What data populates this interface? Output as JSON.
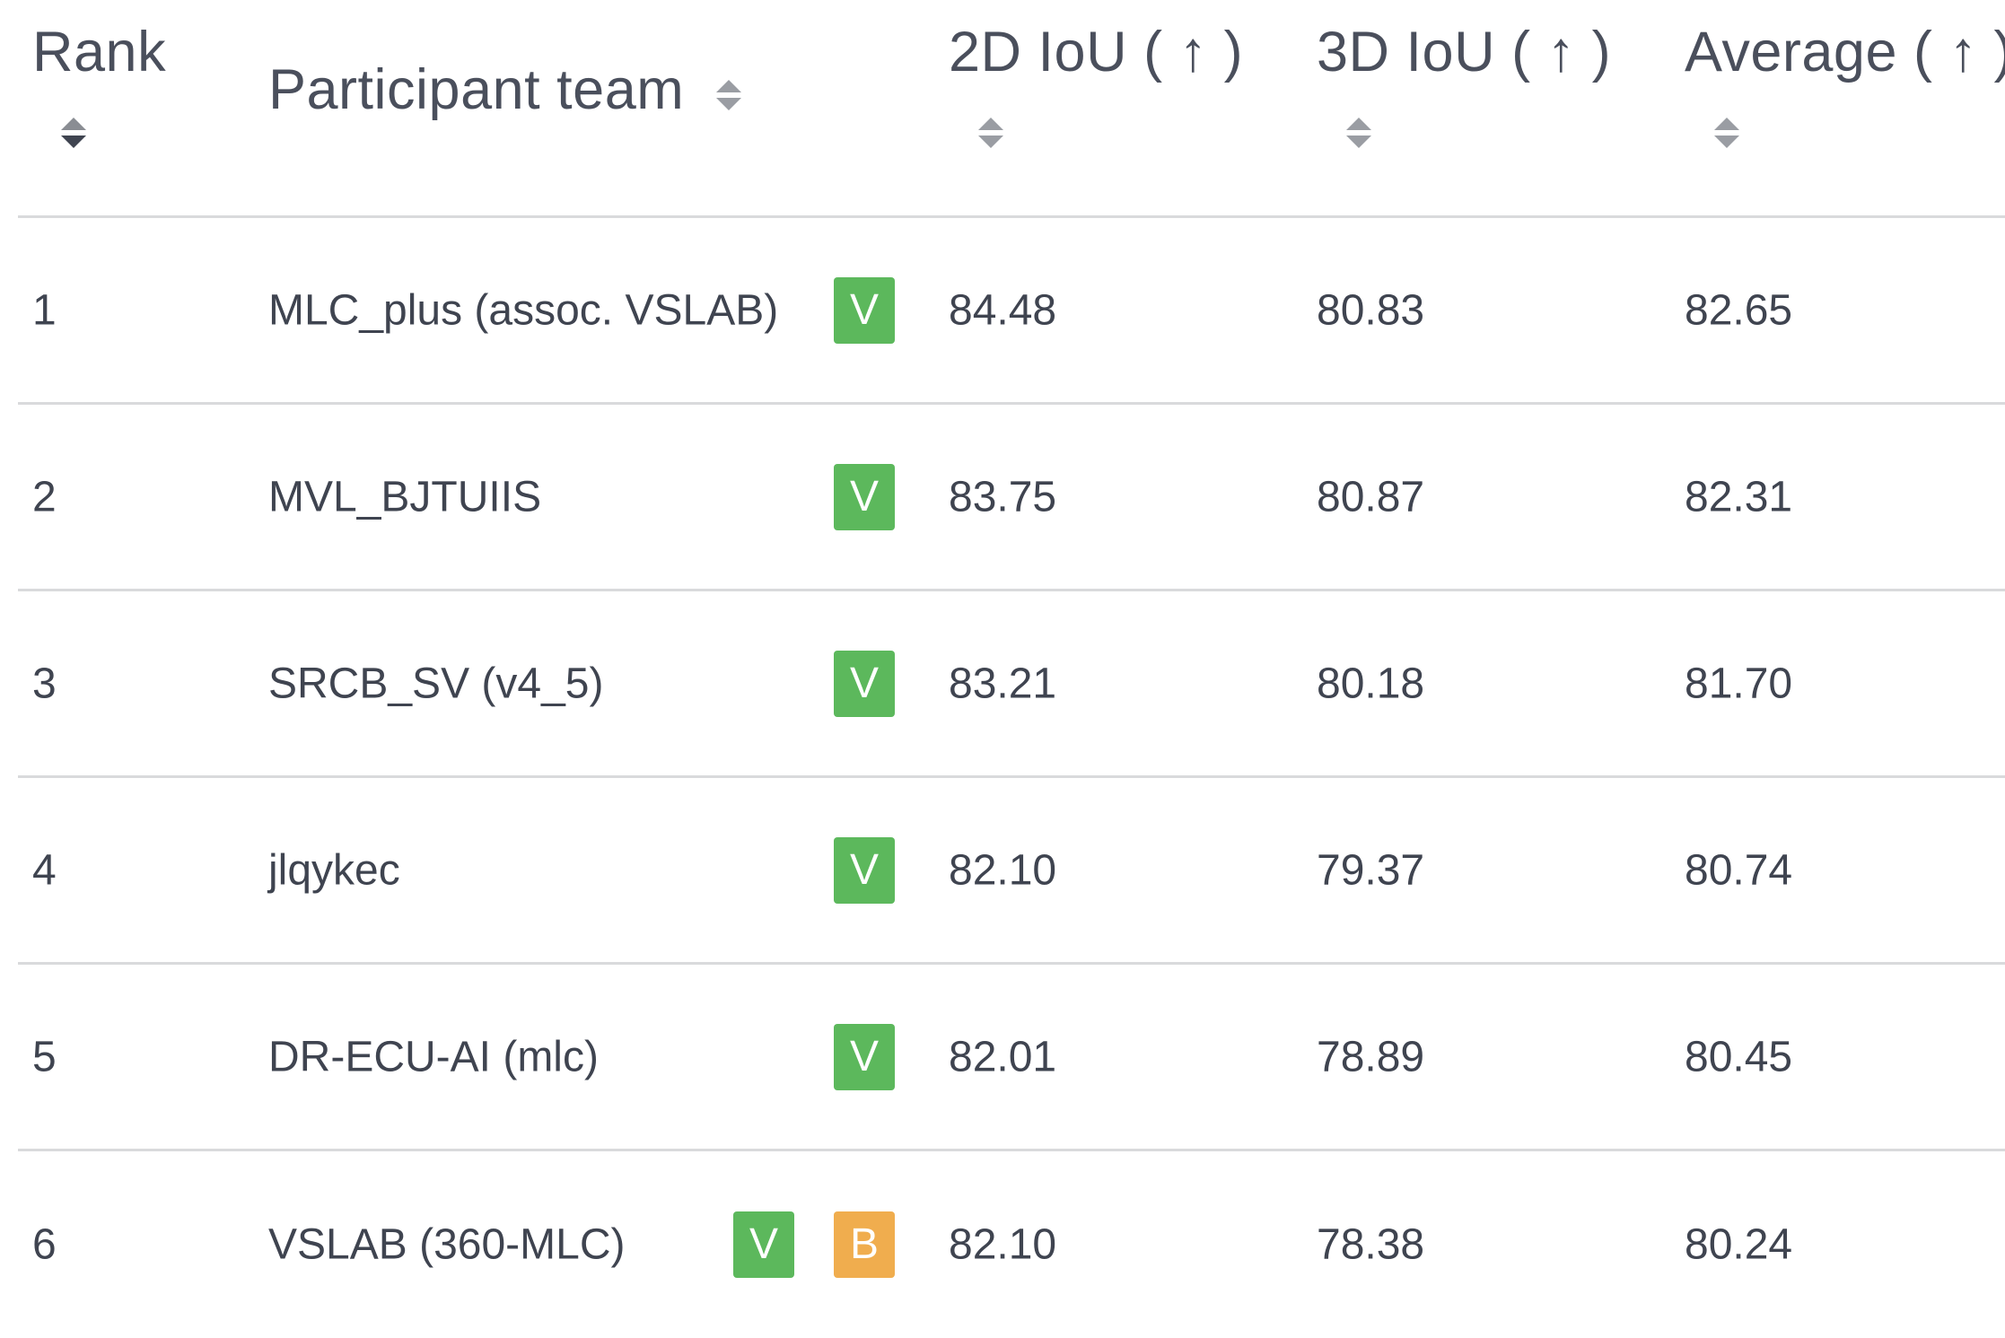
{
  "header": {
    "rank": "Rank",
    "team": "Participant team",
    "iou2d": "2D IoU ( ↑ )",
    "iou3d": "3D IoU ( ↑ )",
    "average": "Average ( ↑ )"
  },
  "colors": {
    "verified_badge": "#5cb85c",
    "baseline_badge": "#f0ad4e",
    "divider": "#d9dadc",
    "text": "#3f4450"
  },
  "rows": [
    {
      "rank": "1",
      "team": "MLC_plus (assoc. VSLAB)",
      "badges": [
        "V"
      ],
      "iou2d": "84.48",
      "iou3d": "80.83",
      "average": "82.65"
    },
    {
      "rank": "2",
      "team": "MVL_BJTUIIS",
      "badges": [
        "V"
      ],
      "iou2d": "83.75",
      "iou3d": "80.87",
      "average": "82.31"
    },
    {
      "rank": "3",
      "team": "SRCB_SV (v4_5)",
      "badges": [
        "V"
      ],
      "iou2d": "83.21",
      "iou3d": "80.18",
      "average": "81.70"
    },
    {
      "rank": "4",
      "team": "jlqykec",
      "badges": [
        "V"
      ],
      "iou2d": "82.10",
      "iou3d": "79.37",
      "average": "80.74"
    },
    {
      "rank": "5",
      "team": "DR-ECU-AI (mlc)",
      "badges": [
        "V"
      ],
      "iou2d": "82.01",
      "iou3d": "78.89",
      "average": "80.45"
    },
    {
      "rank": "6",
      "team": "VSLAB (360-MLC)",
      "badges": [
        "V",
        "B"
      ],
      "iou2d": "82.10",
      "iou3d": "78.38",
      "average": "80.24"
    }
  ]
}
